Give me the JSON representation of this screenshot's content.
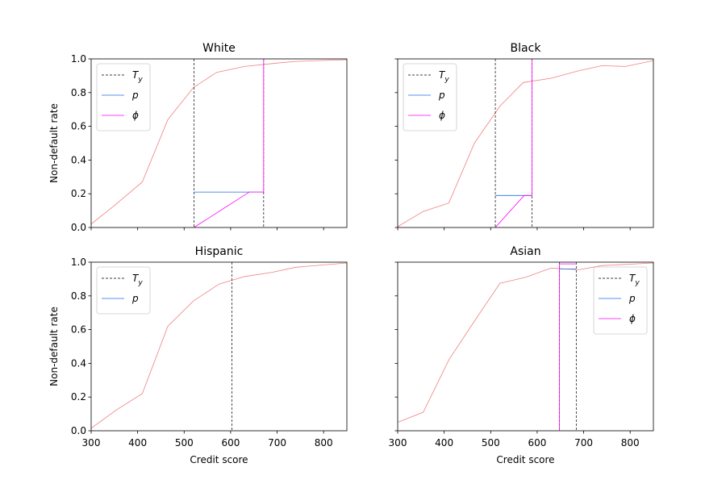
{
  "chart_data": [
    {
      "type": "line",
      "title": "White",
      "xlabel": "",
      "ylabel": "Non-default rate",
      "xlim": [
        300,
        850
      ],
      "ylim": [
        0,
        1
      ],
      "xticks": [
        300,
        400,
        500,
        600,
        700,
        800
      ],
      "yticks": [
        0.0,
        0.2,
        0.4,
        0.6,
        0.8,
        1.0
      ],
      "show_xticklabels": false,
      "show_yticklabels": true,
      "legend": {
        "position": "upper-left",
        "entries": [
          "T_y",
          "p",
          "ϕ"
        ]
      },
      "curve": {
        "x": [
          300,
          350,
          410,
          465,
          520,
          570,
          630,
          700,
          740,
          850
        ],
        "y": [
          0.02,
          0.13,
          0.27,
          0.64,
          0.83,
          0.92,
          0.955,
          0.975,
          0.985,
          0.995
        ]
      },
      "thresholds": [
        521,
        671
      ],
      "p": {
        "x": [
          521,
          671
        ],
        "y": [
          0.21,
          0.21
        ]
      },
      "phi": {
        "x": [
          521,
          640,
          671,
          671
        ],
        "y": [
          0.0,
          0.21,
          0.21,
          1.0
        ]
      }
    },
    {
      "type": "line",
      "title": "Black",
      "xlabel": "",
      "ylabel": "",
      "xlim": [
        300,
        850
      ],
      "ylim": [
        0,
        1
      ],
      "xticks": [
        300,
        400,
        500,
        600,
        700,
        800
      ],
      "yticks": [
        0.0,
        0.2,
        0.4,
        0.6,
        0.8,
        1.0
      ],
      "show_xticklabels": false,
      "show_yticklabels": false,
      "legend": {
        "position": "upper-left",
        "entries": [
          "T_y",
          "p",
          "ϕ"
        ]
      },
      "curve": {
        "x": [
          300,
          355,
          410,
          465,
          520,
          570,
          630,
          690,
          740,
          790,
          850
        ],
        "y": [
          0.005,
          0.095,
          0.145,
          0.5,
          0.72,
          0.86,
          0.885,
          0.93,
          0.96,
          0.955,
          0.99
        ]
      },
      "thresholds": [
        510,
        589
      ],
      "p": {
        "x": [
          510,
          589
        ],
        "y": [
          0.19,
          0.19
        ]
      },
      "phi": {
        "x": [
          510,
          572,
          589,
          589
        ],
        "y": [
          0.0,
          0.19,
          0.19,
          1.0
        ]
      }
    },
    {
      "type": "line",
      "title": "Hispanic",
      "xlabel": "Credit score",
      "ylabel": "Non-default rate",
      "xlim": [
        300,
        850
      ],
      "ylim": [
        0,
        1
      ],
      "xticks": [
        300,
        400,
        500,
        600,
        700,
        800
      ],
      "yticks": [
        0.0,
        0.2,
        0.4,
        0.6,
        0.8,
        1.0
      ],
      "show_xticklabels": true,
      "show_yticklabels": true,
      "legend": {
        "position": "upper-left",
        "entries": [
          "T_y",
          "p"
        ]
      },
      "curve": {
        "x": [
          300,
          355,
          410,
          465,
          520,
          575,
          630,
          690,
          740,
          850
        ],
        "y": [
          0.015,
          0.125,
          0.22,
          0.62,
          0.77,
          0.87,
          0.915,
          0.94,
          0.97,
          0.995
        ]
      },
      "thresholds": [
        603
      ],
      "p": {
        "x": [
          603,
          603
        ],
        "y": [
          0.9,
          0.9
        ]
      },
      "phi": null
    },
    {
      "type": "line",
      "title": "Asian",
      "xlabel": "Credit score",
      "ylabel": "",
      "xlim": [
        300,
        850
      ],
      "ylim": [
        0,
        1
      ],
      "xticks": [
        300,
        400,
        500,
        600,
        700,
        800
      ],
      "yticks": [
        0.0,
        0.2,
        0.4,
        0.6,
        0.8,
        1.0
      ],
      "show_xticklabels": true,
      "show_yticklabels": false,
      "legend": {
        "position": "right",
        "entries": [
          "T_y",
          "p",
          "ϕ"
        ]
      },
      "curve": {
        "x": [
          300,
          355,
          410,
          465,
          520,
          575,
          630,
          690,
          740,
          850
        ],
        "y": [
          0.05,
          0.11,
          0.42,
          0.65,
          0.875,
          0.91,
          0.965,
          0.955,
          0.98,
          0.995
        ]
      },
      "thresholds": [
        648,
        684
      ],
      "p": {
        "x": [
          648,
          684
        ],
        "y": [
          0.96,
          0.96
        ]
      },
      "phi": {
        "x": [
          648,
          648,
          684
        ],
        "y": [
          0.0,
          0.99,
          0.99
        ]
      }
    }
  ],
  "colors": {
    "curve": "#f08080",
    "p": "#1e6ee6",
    "phi": "#ff00ff",
    "threshold": "#000000"
  }
}
